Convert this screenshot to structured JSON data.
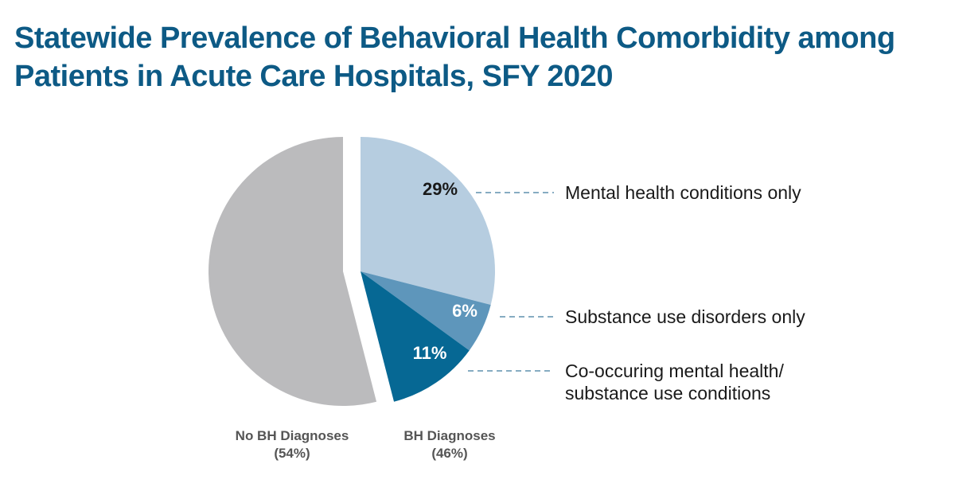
{
  "chart_data": {
    "type": "pie",
    "title": "Statewide Prevalence of Behavioral Health Comorbidity among Patients in Acute Care Hospitals, SFY 2020",
    "title_lines": [
      "Statewide Prevalence of Behavioral Health Comorbidity among",
      "Patients in Acute Care Hospitals, SFY 2020"
    ],
    "slices": [
      {
        "name": "Mental health conditions only",
        "value": 29,
        "label": "29%",
        "color": "#b6cde0",
        "label_color": "#1a1a1a",
        "group": "bh"
      },
      {
        "name": "Substance use disorders only",
        "value": 6,
        "label": "6%",
        "color": "#5e96bb",
        "label_color": "#ffffff",
        "group": "bh"
      },
      {
        "name": "Co-occuring mental health/ substance use conditions",
        "value": 11,
        "label": "11%",
        "color": "#066894",
        "label_color": "#ffffff",
        "group": "bh"
      },
      {
        "name": "No BH Diagnoses",
        "value": 54,
        "label": "",
        "color": "#bbbbbd",
        "label_color": "#ffffff",
        "group": "no_bh"
      }
    ],
    "legend": [
      {
        "lines": [
          "Mental health conditions only"
        ]
      },
      {
        "lines": [
          "Substance use disorders only"
        ]
      },
      {
        "lines": [
          "Co-occuring mental health/",
          "substance use conditions"
        ]
      }
    ],
    "groups": {
      "no_bh": {
        "name": "No BH Diagnoses",
        "pct": "(54%)"
      },
      "bh": {
        "name": "BH Diagnoses",
        "pct": "(46%)"
      }
    },
    "leader_color": "#0d5a85"
  }
}
